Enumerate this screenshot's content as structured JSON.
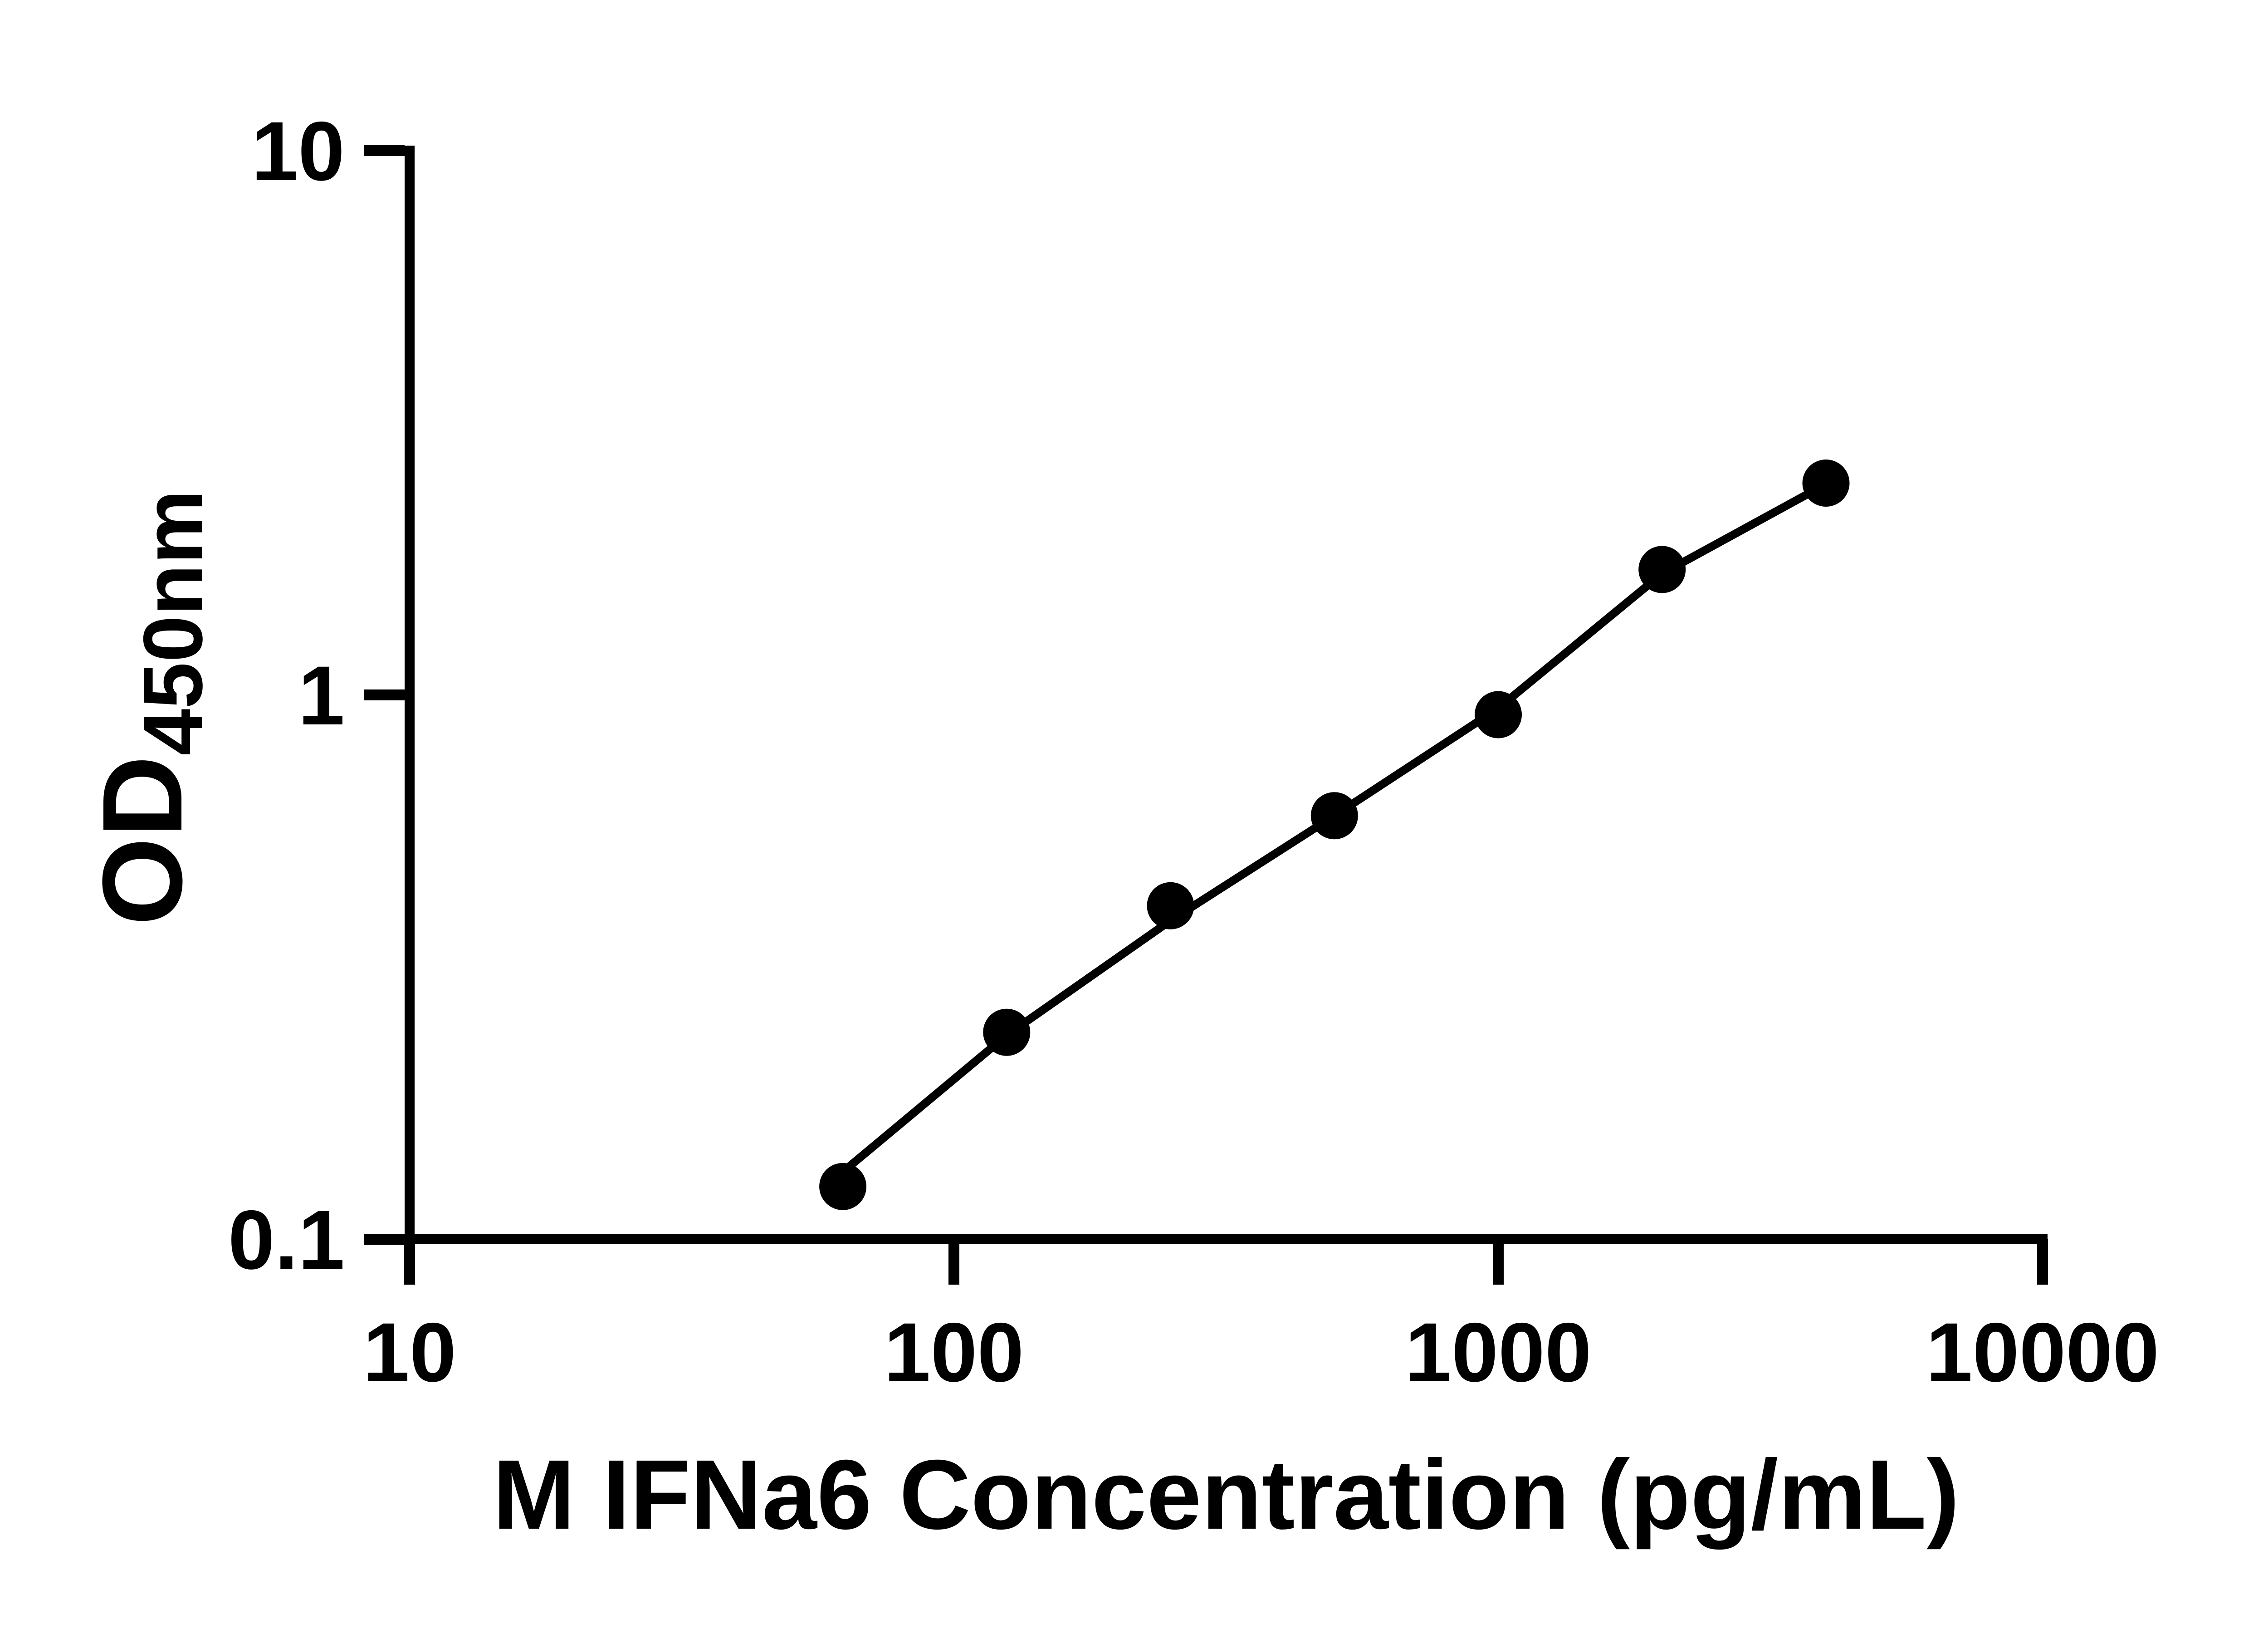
{
  "figure": {
    "background": "#ffffff",
    "foreground": "#000000"
  },
  "chart_data": {
    "type": "scatter",
    "title": "",
    "xlabel": "M IFNa6 Concentration (pg/mL)",
    "ylabel": "OD450nm",
    "ylabel_main": "OD",
    "ylabel_sub": "450nm",
    "x_scale": "log",
    "y_scale": "log",
    "xlim": [
      10,
      10000
    ],
    "ylim": [
      0.1,
      10
    ],
    "x_ticks": [
      10,
      100,
      1000,
      10000
    ],
    "x_tick_labels": [
      "10",
      "100",
      "1000",
      "10000"
    ],
    "y_ticks": [
      10,
      1,
      0.1
    ],
    "y_tick_labels": [
      "10",
      "1",
      "0.1"
    ],
    "grid": false,
    "legend": null,
    "series": [
      {
        "name": "standard-points",
        "type": "scatter",
        "marker": "circle",
        "color": "#000000",
        "x": [
          62.5,
          125,
          250,
          500,
          1000,
          2000,
          4000
        ],
        "y": [
          0.125,
          0.24,
          0.41,
          0.6,
          0.92,
          1.7,
          2.45
        ]
      },
      {
        "name": "fit-line",
        "type": "line",
        "color": "#000000",
        "x": [
          62.5,
          125,
          250,
          500,
          1000,
          2000,
          4000
        ],
        "y": [
          0.133,
          0.237,
          0.385,
          0.6,
          0.945,
          1.67,
          2.44
        ]
      }
    ]
  }
}
